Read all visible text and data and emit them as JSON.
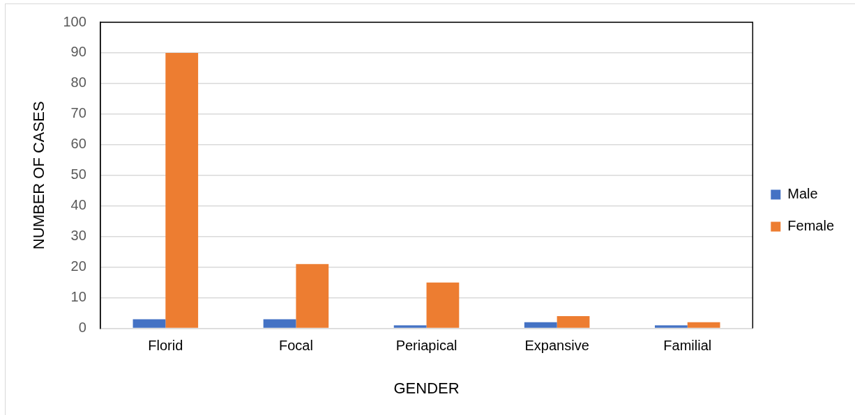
{
  "chart_data": {
    "type": "bar",
    "xlabel": "GENDER",
    "ylabel": "NUMBER OF CASES",
    "categories": [
      "Florid",
      "Focal",
      "Periapical",
      "Expansive",
      "Familial"
    ],
    "series": [
      {
        "name": "Male",
        "color": "#4472c4",
        "values": [
          3,
          3,
          1,
          2,
          1
        ]
      },
      {
        "name": "Female",
        "color": "#ed7d31",
        "values": [
          90,
          21,
          15,
          4,
          2
        ]
      }
    ],
    "ylim": [
      0,
      100
    ],
    "yticks": [
      0,
      10,
      20,
      30,
      40,
      50,
      60,
      70,
      80,
      90,
      100
    ],
    "grid": "y",
    "legend": "right"
  }
}
